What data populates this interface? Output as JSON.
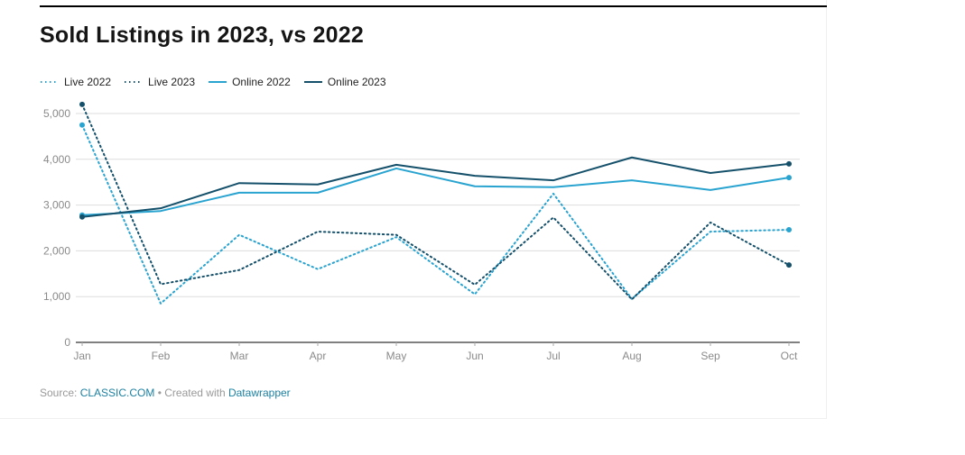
{
  "page": {
    "title": "Sold Listings in 2023, vs 2022",
    "source_prefix": "Source: ",
    "source_link": "CLASSIC.COM",
    "source_separator": " • Created with ",
    "attribution_link": "Datawrapper"
  },
  "colors": {
    "light_blue": "#29a3d0",
    "dark_blue": "#15506b",
    "grid": "#dddddd",
    "axis": "#000000",
    "tick_text": "#8a8a8a",
    "tick_mark": "#aaaaaa",
    "link": "#1d81a2",
    "title_text": "#151515"
  },
  "chart_data": {
    "type": "line",
    "title": "Sold Listings in 2023, vs 2022",
    "categories": [
      "Jan",
      "Feb",
      "Mar",
      "Apr",
      "May",
      "Jun",
      "Jul",
      "Aug",
      "Sep",
      "Oct"
    ],
    "series": [
      {
        "name": "Live 2022",
        "style": "dotted",
        "color": "#29a3d0",
        "values": [
          4750,
          850,
          2350,
          1600,
          2300,
          1050,
          3250,
          950,
          2420,
          2460
        ]
      },
      {
        "name": "Live 2023",
        "style": "dotted",
        "color": "#15506b",
        "values": [
          5200,
          1270,
          1580,
          2420,
          2350,
          1260,
          2730,
          940,
          2620,
          1690
        ]
      },
      {
        "name": "Online 2022",
        "style": "solid",
        "color": "#29a3d0",
        "values": [
          2780,
          2870,
          3270,
          3270,
          3800,
          3410,
          3390,
          3540,
          3330,
          3600
        ]
      },
      {
        "name": "Online 2023",
        "style": "solid",
        "color": "#15506b",
        "values": [
          2740,
          2930,
          3480,
          3450,
          3880,
          3640,
          3540,
          4040,
          3700,
          3900
        ]
      }
    ],
    "ylim": [
      0,
      5000
    ],
    "yticks": [
      0,
      1000,
      2000,
      3000,
      4000,
      5000
    ],
    "ytick_labels": [
      "0",
      "1,000",
      "2,000",
      "3,000",
      "4,000",
      "5,000"
    ],
    "grid": true,
    "legend_position": "top",
    "end_point_markers": true
  }
}
